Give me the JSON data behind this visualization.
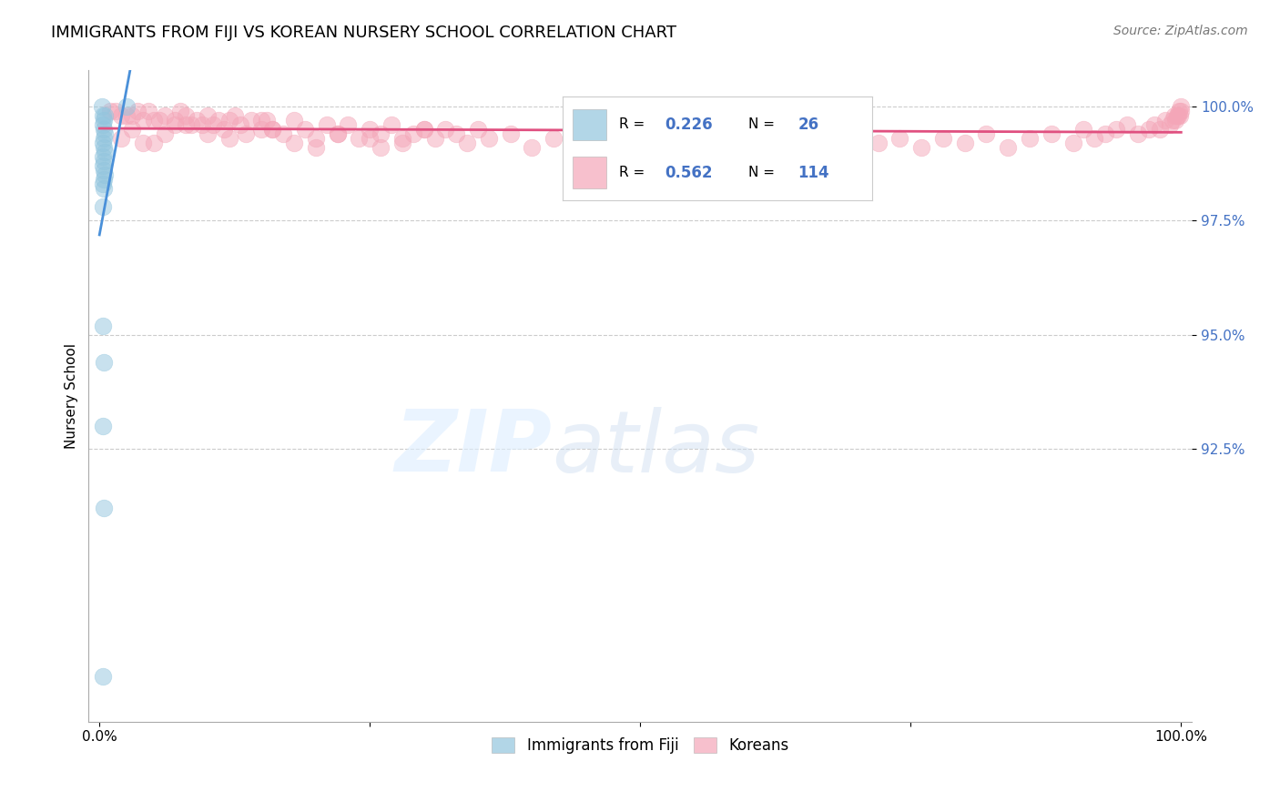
{
  "title": "IMMIGRANTS FROM FIJI VS KOREAN NURSERY SCHOOL CORRELATION CHART",
  "source": "Source: ZipAtlas.com",
  "ylabel": "Nursery School",
  "legend_fiji_r": "0.226",
  "legend_fiji_n": "26",
  "legend_korean_r": "0.562",
  "legend_korean_n": "114",
  "fiji_color": "#92c5de",
  "korean_color": "#f4a6b8",
  "fiji_line_color": "#4a90d9",
  "korean_line_color": "#e05080",
  "background_color": "#ffffff",
  "fiji_scatter_x": [
    0.2,
    0.3,
    2.5,
    0.4,
    0.5,
    0.3,
    0.4,
    0.5,
    0.4,
    0.3,
    0.4,
    0.5,
    0.3,
    0.4,
    0.3,
    0.4,
    0.5,
    0.4,
    0.3,
    0.4,
    0.3,
    0.3,
    0.4,
    0.3,
    0.4,
    0.3
  ],
  "fiji_scatter_y": [
    100.0,
    99.8,
    100.0,
    99.7,
    99.8,
    99.6,
    99.5,
    99.4,
    99.3,
    99.2,
    99.1,
    99.0,
    98.9,
    98.8,
    98.7,
    98.6,
    98.5,
    98.4,
    98.3,
    98.2,
    97.8,
    95.2,
    94.4,
    93.0,
    91.2,
    87.5
  ],
  "korean_scatter_x": [
    1.0,
    1.5,
    2.0,
    2.5,
    3.0,
    3.5,
    4.0,
    4.5,
    5.0,
    5.5,
    6.0,
    7.0,
    7.5,
    8.0,
    8.5,
    9.0,
    9.5,
    10.0,
    10.5,
    11.0,
    11.5,
    12.0,
    12.5,
    13.0,
    13.5,
    14.0,
    15.0,
    15.5,
    16.0,
    17.0,
    18.0,
    19.0,
    20.0,
    21.0,
    22.0,
    23.0,
    24.0,
    25.0,
    26.0,
    27.0,
    28.0,
    29.0,
    30.0,
    31.0,
    32.0,
    33.0,
    34.0,
    35.0,
    36.0,
    38.0,
    40.0,
    42.0,
    44.0,
    46.0,
    48.0,
    50.0,
    52.0,
    54.0,
    56.0,
    58.0,
    60.0,
    62.0,
    64.0,
    66.0,
    68.0,
    70.0,
    72.0,
    74.0,
    76.0,
    78.0,
    80.0,
    82.0,
    84.0,
    86.0,
    88.0,
    90.0,
    91.0,
    92.0,
    93.0,
    94.0,
    95.0,
    96.0,
    97.0,
    97.5,
    98.0,
    98.5,
    99.0,
    99.2,
    99.4,
    99.5,
    99.6,
    99.7,
    99.8,
    99.9,
    99.95,
    100.0,
    2.0,
    3.0,
    5.0,
    7.0,
    10.0,
    15.0,
    20.0,
    25.0,
    30.0,
    4.0,
    6.0,
    8.0,
    12.0,
    16.0,
    18.0,
    22.0,
    26.0,
    28.0
  ],
  "korean_scatter_y": [
    99.9,
    99.9,
    99.8,
    99.8,
    99.8,
    99.9,
    99.7,
    99.9,
    99.7,
    99.7,
    99.8,
    99.7,
    99.9,
    99.8,
    99.6,
    99.7,
    99.6,
    99.8,
    99.6,
    99.7,
    99.5,
    99.7,
    99.8,
    99.6,
    99.4,
    99.7,
    99.5,
    99.7,
    99.5,
    99.4,
    99.7,
    99.5,
    99.3,
    99.6,
    99.4,
    99.6,
    99.3,
    99.5,
    99.4,
    99.6,
    99.2,
    99.4,
    99.5,
    99.3,
    99.5,
    99.4,
    99.2,
    99.5,
    99.3,
    99.4,
    99.1,
    99.3,
    99.5,
    99.2,
    99.4,
    99.3,
    99.3,
    99.4,
    99.2,
    99.3,
    99.4,
    99.1,
    99.3,
    99.2,
    99.4,
    99.0,
    99.2,
    99.3,
    99.1,
    99.3,
    99.2,
    99.4,
    99.1,
    99.3,
    99.4,
    99.2,
    99.5,
    99.3,
    99.4,
    99.5,
    99.6,
    99.4,
    99.5,
    99.6,
    99.5,
    99.7,
    99.6,
    99.7,
    99.8,
    99.7,
    99.8,
    99.8,
    99.9,
    99.8,
    99.9,
    100.0,
    99.3,
    99.5,
    99.2,
    99.6,
    99.4,
    99.7,
    99.1,
    99.3,
    99.5,
    99.2,
    99.4,
    99.6,
    99.3,
    99.5,
    99.2,
    99.4,
    99.1,
    99.3
  ]
}
